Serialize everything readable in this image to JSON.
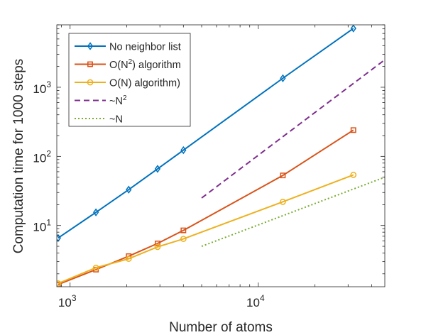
{
  "chart_data": {
    "type": "line",
    "xlabel": "Number of atoms",
    "ylabel": "Computation time for 1000 steps",
    "xscale": "log",
    "yscale": "log",
    "xlim": [
      850,
      47000
    ],
    "ylim": [
      1.3,
      8000
    ],
    "x_ticks": [
      {
        "value": 1000,
        "base": "10",
        "exp": "3"
      },
      {
        "value": 10000,
        "base": "10",
        "exp": "4"
      }
    ],
    "y_ticks": [
      {
        "value": 10,
        "base": "10",
        "exp": "1"
      },
      {
        "value": 100,
        "base": "10",
        "exp": "2"
      },
      {
        "value": 1000,
        "base": "10",
        "exp": "3"
      }
    ],
    "grid": false,
    "legend_position": "top-left",
    "series": [
      {
        "name": "No neighbor list",
        "color": "#0072BD",
        "marker": "diamond",
        "linestyle": "solid",
        "x": [
          864,
          1372,
          2048,
          2916,
          4000,
          13500,
          32000
        ],
        "y": [
          6.6,
          15.5,
          33,
          66,
          123,
          1350,
          7100
        ]
      },
      {
        "name": "O(N2) algorithm",
        "name_base": "O(N",
        "name_sup": "2",
        "name_tail": ") algorithm",
        "color": "#D95319",
        "marker": "square",
        "linestyle": "solid",
        "x": [
          864,
          1372,
          2048,
          2916,
          4000,
          13500,
          32000
        ],
        "y": [
          1.4,
          2.3,
          3.6,
          5.5,
          8.5,
          53,
          240
        ]
      },
      {
        "name": "O(N) algorithm)",
        "color": "#EDB120",
        "marker": "circle",
        "linestyle": "solid",
        "x": [
          864,
          1372,
          2048,
          2916,
          4000,
          13500,
          32000
        ],
        "y": [
          1.45,
          2.45,
          3.3,
          4.9,
          6.4,
          22,
          54
        ]
      },
      {
        "name": "~N2",
        "name_base": "~N",
        "name_sup": "2",
        "color": "#7E2F8E",
        "marker": "none",
        "linestyle": "dashed",
        "x": [
          5000,
          47000
        ],
        "y": [
          25,
          2500
        ]
      },
      {
        "name": "~N",
        "color": "#77AC30",
        "marker": "none",
        "linestyle": "dotted",
        "x": [
          5000,
          47000
        ],
        "y": [
          5,
          50
        ]
      }
    ]
  }
}
